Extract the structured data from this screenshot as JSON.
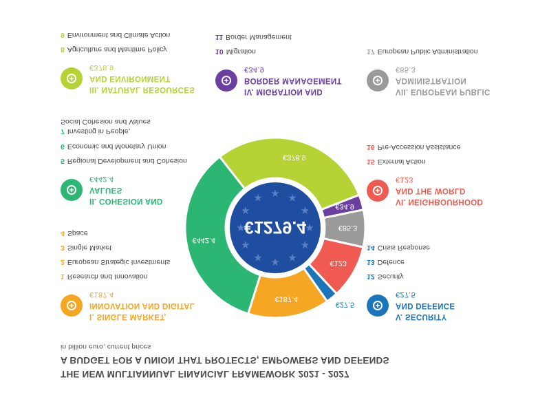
{
  "title": {
    "line1": "THE NEW MULTIANNUAL FINANCIAL FRAMEWORK 2021 - 2027",
    "line2": "A BUDGET FOR A UNION THAT PROTECTS, EMPOWERS AND DEFENDS",
    "unit": "in billion euro, current prices"
  },
  "total": "€1279.4",
  "sections": {
    "single_market": {
      "color": "#f5a623",
      "l1": "I. SINGLE MARKET,",
      "l2": "INNOVATION AND DIGITAL",
      "amount": "€187.4",
      "items": [
        {
          "n": "1",
          "t": "Research and Innovation"
        },
        {
          "n": "2",
          "t": "European Strategic Investments"
        },
        {
          "n": "3",
          "t": "Single Market"
        },
        {
          "n": "4",
          "t": "Space"
        }
      ]
    },
    "cohesion": {
      "color": "#2bb673",
      "l1": "II. COHESION AND",
      "l2": "VALUES",
      "amount": "€442.4",
      "items": [
        {
          "n": "5",
          "t": "Regional Development and Cohesion"
        },
        {
          "n": "6",
          "t": "Economic and Monetary Union"
        },
        {
          "n": "7",
          "t": "Investing in People,\n  Social Cohesion and Values"
        }
      ]
    },
    "natural": {
      "color": "#b5d334",
      "l1": "III. NATURAL RESOURCES",
      "l2": "AND ENVIRONMENT",
      "amount": "€378.9",
      "items": [
        {
          "n": "8",
          "t": "Agriculture and Maritime Policy"
        },
        {
          "n": "9",
          "t": "Environment and Climate Action"
        }
      ]
    },
    "migration": {
      "color": "#6b3fa0",
      "l1": "IV. MIGRATION AND",
      "l2": "BORDER MANAGEMENT",
      "amount": "€34.9",
      "items": [
        {
          "n": "10",
          "t": "Migration"
        },
        {
          "n": "11",
          "t": "Border Management"
        }
      ]
    },
    "security": {
      "color": "#1b75bb",
      "l1": "V. SECURITY",
      "l2": "AND DEFENCE",
      "amount": "€27.5",
      "items": [
        {
          "n": "12",
          "t": "Security"
        },
        {
          "n": "13",
          "t": "Defence"
        },
        {
          "n": "14",
          "t": "Crisis Response"
        }
      ]
    },
    "neighbourhood": {
      "color": "#ef5b50",
      "l1": "VI. NEIGHBOURHOOD",
      "l2": "AND THE WORLD",
      "amount": "€123",
      "items": [
        {
          "n": "15",
          "t": "External Action"
        },
        {
          "n": "16",
          "t": "Pre-Accession Assistance"
        }
      ]
    },
    "admin": {
      "color": "#9a9a9a",
      "l1": "VII. EUROPEAN PUBLIC",
      "l2": "ADMINISTRATION",
      "amount": "€85.3",
      "items": [
        {
          "n": "17",
          "t": "European Public Administration"
        }
      ]
    }
  },
  "donut": [
    {
      "key": "natural",
      "label": "€378.9",
      "value": 378.9,
      "color": "#b5d334"
    },
    {
      "key": "migration",
      "label": "€34.9",
      "value": 34.9,
      "color": "#6b3fa0"
    },
    {
      "key": "admin",
      "label": "€85.3",
      "value": 85.3,
      "color": "#9a9a9a"
    },
    {
      "key": "neighbourhood",
      "label": "€123",
      "value": 123,
      "color": "#ef5b50"
    },
    {
      "key": "security",
      "label": "€27.5",
      "value": 27.5,
      "color": "#1b75bb"
    },
    {
      "key": "single_market",
      "label": "€187.4",
      "value": 187.4,
      "color": "#f5a623"
    },
    {
      "key": "cohesion",
      "label": "€442.4",
      "value": 442.4,
      "color": "#2bb673"
    }
  ],
  "eu_blue": "#1f4ea1"
}
